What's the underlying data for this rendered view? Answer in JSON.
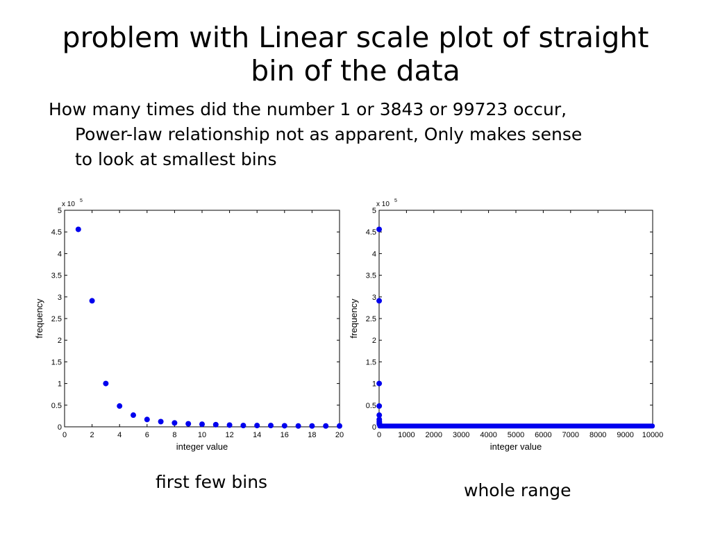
{
  "slide": {
    "title_line1": "problem with Linear scale plot of straight",
    "title_line2": "bin of the data",
    "bullet_line1": "How many times did the number 1 or 3843 or 99723 occur,",
    "bullet_line2": "Power-law relationship not as apparent, Only makes sense",
    "bullet_line3": "to look at smallest bins"
  },
  "captions": {
    "left": "first few bins",
    "right": "whole range"
  },
  "chart_data": [
    {
      "type": "scatter",
      "title": "",
      "xlabel": "integer value",
      "ylabel": "frequency",
      "y_exponent_label": "x 10",
      "y_exponent": "5",
      "xlim": [
        0,
        20
      ],
      "ylim": [
        0,
        5
      ],
      "xticks": [
        "0",
        "2",
        "4",
        "6",
        "8",
        "10",
        "12",
        "14",
        "16",
        "18",
        "20"
      ],
      "yticks": [
        "0",
        "0.5",
        "1",
        "1.5",
        "2",
        "2.5",
        "3",
        "3.5",
        "4",
        "4.5",
        "5"
      ],
      "marker_color": "#0000ee",
      "grid": false,
      "series": [
        {
          "x": [
            1,
            2,
            3,
            4,
            5,
            6,
            7,
            8,
            9,
            10,
            11,
            12,
            13,
            14,
            15,
            16,
            17,
            18,
            19,
            20
          ],
          "y": [
            4.56,
            2.91,
            1.0,
            0.48,
            0.27,
            0.17,
            0.12,
            0.09,
            0.07,
            0.06,
            0.05,
            0.04,
            0.03,
            0.03,
            0.03,
            0.025,
            0.02,
            0.02,
            0.02,
            0.02
          ]
        }
      ]
    },
    {
      "type": "scatter",
      "title": "",
      "xlabel": "integer value",
      "ylabel": "frequency",
      "y_exponent_label": "x 10",
      "y_exponent": "5",
      "xlim": [
        0,
        10000
      ],
      "ylim": [
        0,
        5
      ],
      "xticks": [
        "0",
        "1000",
        "2000",
        "3000",
        "4000",
        "5000",
        "6000",
        "7000",
        "8000",
        "9000",
        "10000"
      ],
      "yticks": [
        "0",
        "0.5",
        "1",
        "1.5",
        "2",
        "2.5",
        "3",
        "3.5",
        "4",
        "4.5",
        "5"
      ],
      "marker_color": "#0000ee",
      "grid": false,
      "series": [
        {
          "x": [
            1,
            2,
            3,
            4,
            5,
            6,
            7,
            8,
            9,
            10
          ],
          "y": [
            4.56,
            2.91,
            1.0,
            0.48,
            0.27,
            0.17,
            0.12,
            0.09,
            0.07,
            0.06
          ],
          "tail": {
            "x_start": 11,
            "x_end": 10000,
            "y": 0.01
          }
        }
      ]
    }
  ]
}
